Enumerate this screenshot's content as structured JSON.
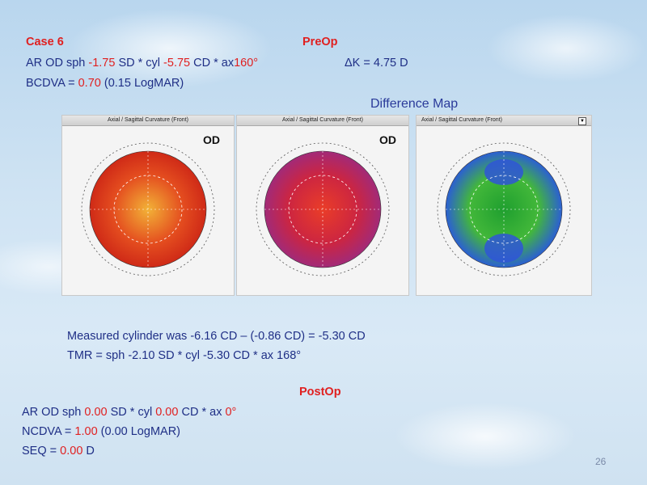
{
  "case_label": "Case  6",
  "preop_title": "PreOp",
  "refraction_pre": {
    "prefix": "AR OD sph ",
    "sph": "-1.75",
    "sd": " SD * cyl ",
    "cyl": "-5.75",
    "cd": " CD * ax",
    "ax": "160°"
  },
  "delta_k": "ΔK = 4.75 D",
  "bcdva": {
    "prefix": "BCDVA  = ",
    "value": "0.70",
    "suffix": " (0.15 LogMAR)"
  },
  "difference_map_label": "Difference Map",
  "maps": [
    {
      "header": "Axial / Sagittal Curvature (Front)",
      "eye": "OD",
      "colors": [
        "#f2b237",
        "#e44d1f",
        "#cf2a17"
      ]
    },
    {
      "header": "Axial / Sagittal Curvature (Front)",
      "eye": "OD",
      "colors": [
        "#ea3d28",
        "#cc2541",
        "#a22a78"
      ]
    },
    {
      "header": "Axial / Sagittal Curvature (Front)",
      "eye": "",
      "colors": [
        "#1f9f2f",
        "#43b83a",
        "#2b5fd3"
      ]
    }
  ],
  "measured": "Measured cylinder was -6.16 CD – (-0.86 CD) = -5.30 CD",
  "tmr": "TMR = sph -2.10 SD * cyl -5.30 CD * ax 168°",
  "postop_title": "PostOp",
  "refraction_post": {
    "prefix": "AR OD sph ",
    "sph": "0.00",
    "sd": " SD * cyl ",
    "cyl": "0.00",
    "cd": " CD * ax ",
    "ax": "0°"
  },
  "ncdva": {
    "prefix": "NCDVA = ",
    "value": "1.00",
    "suffix": " (0.00 LogMAR)"
  },
  "seq": {
    "prefix": "SEQ = ",
    "value": "0.00",
    "suffix": " D"
  },
  "page_number": "26"
}
